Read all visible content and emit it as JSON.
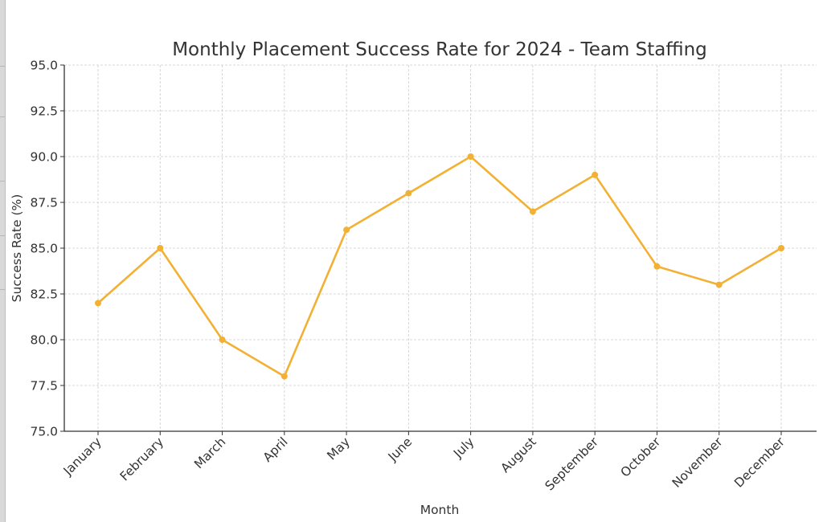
{
  "chart_data": {
    "type": "line",
    "title": "Monthly Placement Success Rate for 2024 - Team Staffing",
    "xlabel": "Month",
    "ylabel": "Success Rate (%)",
    "categories": [
      "January",
      "February",
      "March",
      "April",
      "May",
      "June",
      "July",
      "August",
      "September",
      "October",
      "November",
      "December"
    ],
    "series": [
      {
        "name": "Success Rate",
        "values": [
          82,
          85,
          80,
          78,
          86,
          88,
          90,
          87,
          89,
          84,
          83,
          85
        ],
        "color": "#F2B134",
        "marker": "circle"
      }
    ],
    "ylim": [
      75.0,
      95.0
    ],
    "yticks": [
      "75.0",
      "77.5",
      "80.0",
      "82.5",
      "85.0",
      "87.5",
      "90.0",
      "92.5",
      "95.0"
    ],
    "grid": true,
    "grid_style": "dashed",
    "legend": null,
    "x_tick_rotation": 45
  }
}
